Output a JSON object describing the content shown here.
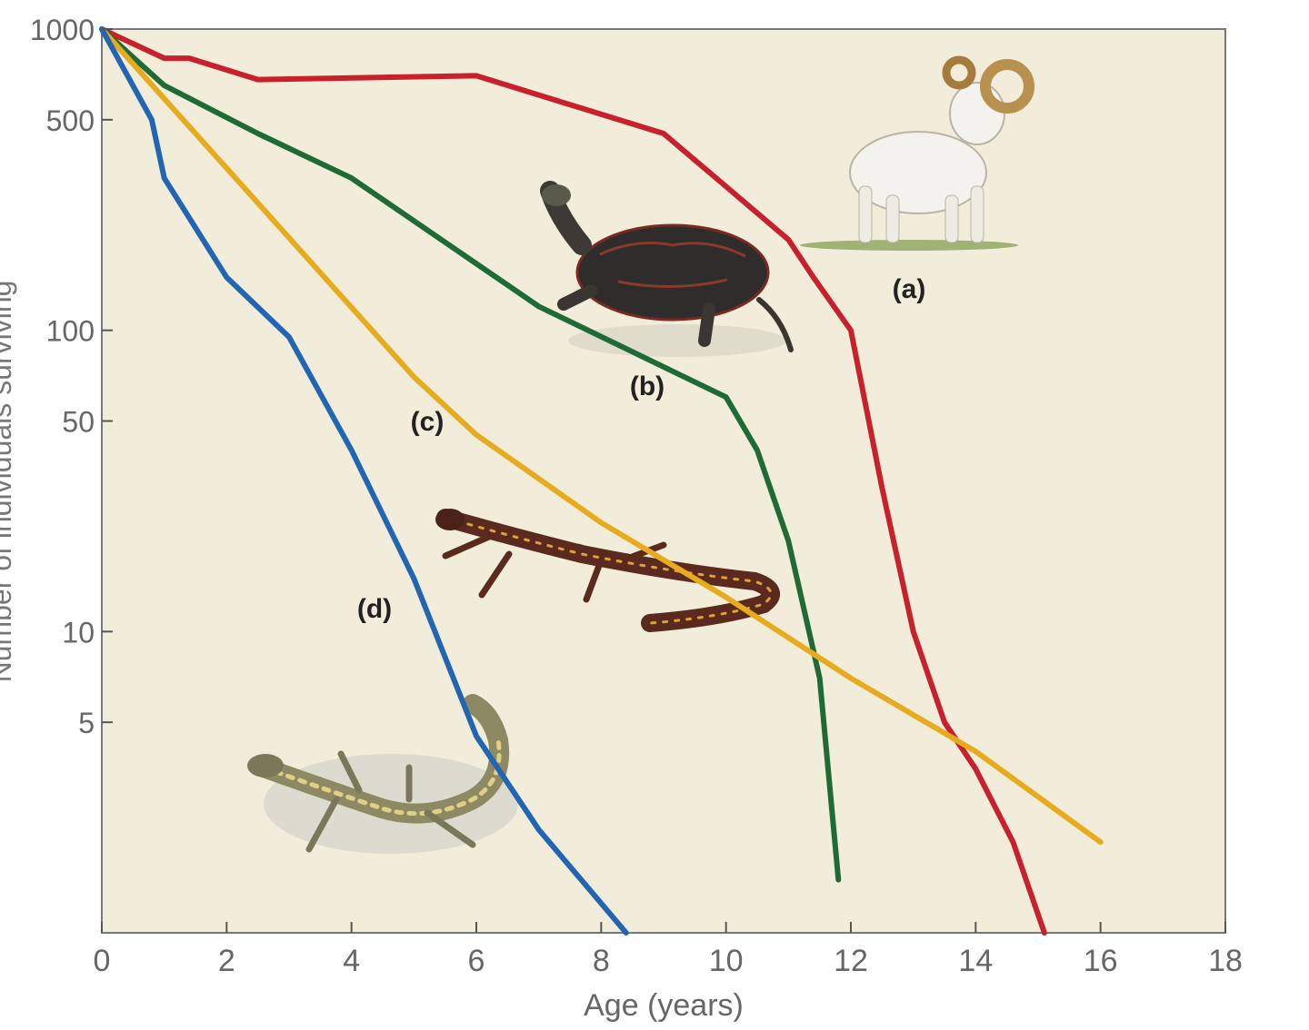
{
  "chart_data": {
    "type": "line",
    "title": "",
    "xlabel": "Age (years)",
    "ylabel": "Number of individuals surviving",
    "xlim": [
      0,
      18
    ],
    "ylim": [
      1,
      1000
    ],
    "yscale": "log",
    "grid": false,
    "x_ticks": [
      "0",
      "2",
      "4",
      "6",
      "8",
      "10",
      "12",
      "14",
      "16",
      "18"
    ],
    "y_ticks": [
      "1000",
      "500",
      "100",
      "50",
      "10",
      "5"
    ],
    "colors": {
      "background": "#f2eddb",
      "a": "#c8202c",
      "b": "#1f6b35",
      "c": "#e7ac1e",
      "d": "#2266b3"
    },
    "series": [
      {
        "name": "(a)",
        "x": [
          0,
          1,
          1.4,
          2.5,
          6,
          9,
          10,
          11,
          11.4,
          12,
          12.5,
          13,
          13.5,
          14,
          14.6,
          15.1
        ],
        "y": [
          1000,
          800,
          800,
          680,
          700,
          450,
          300,
          200,
          150,
          100,
          30,
          10,
          5,
          3.5,
          2,
          1
        ]
      },
      {
        "name": "(b)",
        "x": [
          0,
          1,
          2.5,
          4,
          7,
          10,
          10.5,
          11,
          11.5,
          11.8
        ],
        "y": [
          1000,
          650,
          450,
          320,
          120,
          60,
          40,
          20,
          7,
          1.5
        ]
      },
      {
        "name": "(c)",
        "x": [
          0,
          5,
          6,
          8,
          10,
          12,
          14,
          16
        ],
        "y": [
          1000,
          70,
          45,
          23,
          13,
          7,
          4,
          2
        ]
      },
      {
        "name": "(d)",
        "x": [
          0,
          0.8,
          1,
          2,
          3,
          4,
          5,
          6,
          7,
          8.4
        ],
        "y": [
          1000,
          500,
          320,
          150,
          95,
          40,
          15,
          4.5,
          2.2,
          1
        ]
      }
    ]
  }
}
